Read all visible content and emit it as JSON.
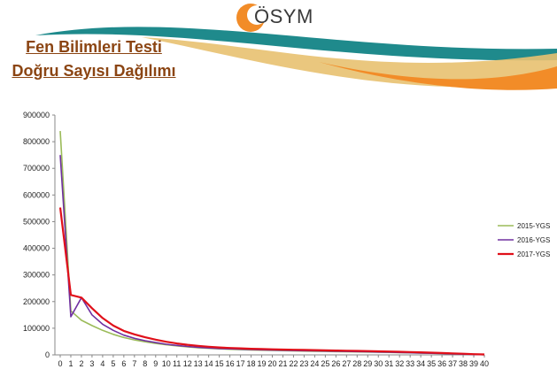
{
  "header": {
    "logo_text": "ÖSYM",
    "title_line1": "Fen Bilimleri Testi",
    "title_line2": "Doğru Sayısı Dağılımı"
  },
  "colors": {
    "title": "#8B4513",
    "swoosh_teal": "#1F8A8C",
    "swoosh_orange": "#F28C28",
    "logo_orange": "#F28C28"
  },
  "chart_data": {
    "type": "line",
    "title": "",
    "xlabel": "",
    "ylabel": "",
    "ylim": [
      0,
      900000
    ],
    "xlim": [
      0,
      40
    ],
    "grid": false,
    "legend_position": "right",
    "x": [
      0,
      1,
      2,
      3,
      4,
      5,
      6,
      7,
      8,
      9,
      10,
      11,
      12,
      13,
      14,
      15,
      16,
      17,
      18,
      19,
      20,
      21,
      22,
      23,
      24,
      25,
      26,
      27,
      28,
      29,
      30,
      31,
      32,
      33,
      34,
      35,
      36,
      37,
      38,
      39,
      40
    ],
    "y_ticks": [
      0,
      100000,
      200000,
      300000,
      400000,
      500000,
      600000,
      700000,
      800000,
      900000
    ],
    "series": [
      {
        "name": "2015-YGS",
        "color": "#9BBB59",
        "values": [
          840000,
          165000,
          130000,
          110000,
          92000,
          77000,
          65000,
          56000,
          49000,
          43000,
          38000,
          34000,
          30000,
          27000,
          24500,
          22500,
          21000,
          19500,
          18500,
          17500,
          16500,
          15800,
          15000,
          14300,
          13700,
          13000,
          12400,
          11800,
          11200,
          10600,
          10000,
          9300,
          8600,
          7800,
          7000,
          6000,
          5000,
          3800,
          2600,
          1500,
          700
        ]
      },
      {
        "name": "2016-YGS",
        "color": "#7030A0",
        "values": [
          750000,
          143000,
          215000,
          150000,
          115000,
          92000,
          74000,
          62000,
          53000,
          46000,
          40000,
          35500,
          31500,
          28500,
          26000,
          24000,
          22500,
          21200,
          20000,
          19000,
          18000,
          17200,
          16400,
          15700,
          15000,
          14300,
          13600,
          12900,
          12200,
          11500,
          10700,
          9900,
          9000,
          8100,
          7100,
          6000,
          4900,
          3700,
          2500,
          1400,
          600
        ]
      },
      {
        "name": "2017-YGS",
        "color": "#E0101A",
        "values": [
          553000,
          225000,
          215000,
          175000,
          138000,
          110000,
          90000,
          77000,
          66000,
          57000,
          49000,
          43000,
          38000,
          34000,
          30500,
          28000,
          26000,
          24500,
          23000,
          21800,
          20800,
          20000,
          19200,
          18500,
          17800,
          17100,
          16400,
          15700,
          15000,
          14200,
          13400,
          12500,
          11600,
          10600,
          9500,
          8300,
          7000,
          5600,
          4200,
          2800,
          1500
        ]
      }
    ]
  }
}
